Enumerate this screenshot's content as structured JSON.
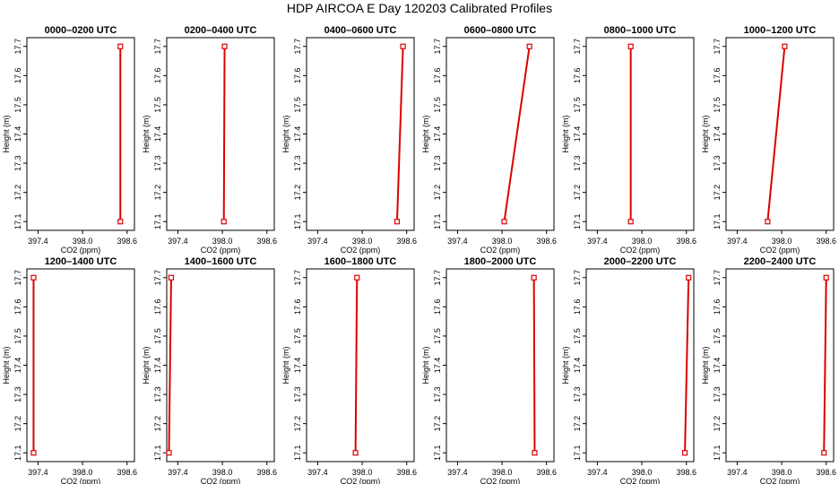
{
  "figure_title": "HDP AIRCOA E  Day 120203  Calibrated Profiles",
  "chart_data": [
    {
      "type": "line",
      "title": "0000–0200 UTC",
      "xlabel": "CO2 (ppm)",
      "ylabel": "Height (m)",
      "xlim": [
        397.25,
        398.7
      ],
      "ylim": [
        17.07,
        17.73
      ],
      "xticks": [
        "397.4",
        "398.0",
        "398.6"
      ],
      "yticks": [
        "17.1",
        "17.2",
        "17.3",
        "17.4",
        "17.5",
        "17.6",
        "17.7"
      ],
      "series": [
        {
          "x": [
            398.51,
            398.51
          ],
          "y": [
            17.1,
            17.7
          ]
        }
      ]
    },
    {
      "type": "line",
      "title": "0200–0400 UTC",
      "xlabel": "CO2 (ppm)",
      "ylabel": "Height (m)",
      "xlim": [
        397.25,
        398.7
      ],
      "ylim": [
        17.07,
        17.73
      ],
      "xticks": [
        "397.4",
        "398.0",
        "398.6"
      ],
      "yticks": [
        "17.1",
        "17.2",
        "17.3",
        "17.4",
        "17.5",
        "17.6",
        "17.7"
      ],
      "series": [
        {
          "x": [
            398.02,
            398.03
          ],
          "y": [
            17.1,
            17.7
          ]
        }
      ]
    },
    {
      "type": "line",
      "title": "0400–0600 UTC",
      "xlabel": "CO2 (ppm)",
      "ylabel": "Height (m)",
      "xlim": [
        397.25,
        398.7
      ],
      "ylim": [
        17.07,
        17.73
      ],
      "xticks": [
        "397.4",
        "398.0",
        "398.6"
      ],
      "yticks": [
        "17.1",
        "17.2",
        "17.3",
        "17.4",
        "17.5",
        "17.6",
        "17.7"
      ],
      "series": [
        {
          "x": [
            398.47,
            398.55
          ],
          "y": [
            17.1,
            17.7
          ]
        }
      ]
    },
    {
      "type": "line",
      "title": "0600–0800 UTC",
      "xlabel": "CO2 (ppm)",
      "ylabel": "Height (m)",
      "xlim": [
        397.25,
        398.7
      ],
      "ylim": [
        17.07,
        17.73
      ],
      "xticks": [
        "397.4",
        "398.0",
        "398.6"
      ],
      "yticks": [
        "17.1",
        "17.2",
        "17.3",
        "17.4",
        "17.5",
        "17.6",
        "17.7"
      ],
      "series": [
        {
          "x": [
            398.03,
            398.37
          ],
          "y": [
            17.1,
            17.7
          ]
        }
      ]
    },
    {
      "type": "line",
      "title": "0800–1000 UTC",
      "xlabel": "CO2 (ppm)",
      "ylabel": "Height (m)",
      "xlim": [
        397.25,
        398.7
      ],
      "ylim": [
        17.07,
        17.73
      ],
      "xticks": [
        "397.4",
        "398.0",
        "398.6"
      ],
      "yticks": [
        "17.1",
        "17.2",
        "17.3",
        "17.4",
        "17.5",
        "17.6",
        "17.7"
      ],
      "series": [
        {
          "x": [
            397.85,
            397.85
          ],
          "y": [
            17.1,
            17.7
          ]
        }
      ]
    },
    {
      "type": "line",
      "title": "1000–1200 UTC",
      "xlabel": "CO2 (ppm)",
      "ylabel": "Height (m)",
      "xlim": [
        397.25,
        398.7
      ],
      "ylim": [
        17.07,
        17.73
      ],
      "xticks": [
        "397.4",
        "398.0",
        "398.6"
      ],
      "yticks": [
        "17.1",
        "17.2",
        "17.3",
        "17.4",
        "17.5",
        "17.6",
        "17.7"
      ],
      "series": [
        {
          "x": [
            397.81,
            398.04
          ],
          "y": [
            17.1,
            17.7
          ]
        }
      ]
    },
    {
      "type": "line",
      "title": "1200–1400 UTC",
      "xlabel": "CO2 (ppm)",
      "ylabel": "Height (m)",
      "xlim": [
        397.25,
        398.7
      ],
      "ylim": [
        17.07,
        17.73
      ],
      "xticks": [
        "397.4",
        "398.0",
        "398.6"
      ],
      "yticks": [
        "17.1",
        "17.2",
        "17.3",
        "17.4",
        "17.5",
        "17.6",
        "17.7"
      ],
      "series": [
        {
          "x": [
            397.34,
            397.34
          ],
          "y": [
            17.1,
            17.7
          ]
        }
      ]
    },
    {
      "type": "line",
      "title": "1400–1600 UTC",
      "xlabel": "CO2 (ppm)",
      "ylabel": "Height (m)",
      "xlim": [
        397.25,
        398.7
      ],
      "ylim": [
        17.07,
        17.73
      ],
      "xticks": [
        "397.4",
        "398.0",
        "398.6"
      ],
      "yticks": [
        "17.1",
        "17.2",
        "17.3",
        "17.4",
        "17.5",
        "17.6",
        "17.7"
      ],
      "series": [
        {
          "x": [
            397.28,
            397.31
          ],
          "y": [
            17.1,
            17.7
          ]
        }
      ]
    },
    {
      "type": "line",
      "title": "1600–1800 UTC",
      "xlabel": "CO2 (ppm)",
      "ylabel": "Height (m)",
      "xlim": [
        397.25,
        398.7
      ],
      "ylim": [
        17.07,
        17.73
      ],
      "xticks": [
        "397.4",
        "398.0",
        "398.6"
      ],
      "yticks": [
        "17.1",
        "17.2",
        "17.3",
        "17.4",
        "17.5",
        "17.6",
        "17.7"
      ],
      "series": [
        {
          "x": [
            397.91,
            397.93
          ],
          "y": [
            17.1,
            17.7
          ]
        }
      ]
    },
    {
      "type": "line",
      "title": "1800–2000 UTC",
      "xlabel": "CO2 (ppm)",
      "ylabel": "Height (m)",
      "xlim": [
        397.25,
        398.7
      ],
      "ylim": [
        17.07,
        17.73
      ],
      "xticks": [
        "397.4",
        "398.0",
        "398.6"
      ],
      "yticks": [
        "17.1",
        "17.2",
        "17.3",
        "17.4",
        "17.5",
        "17.6",
        "17.7"
      ],
      "series": [
        {
          "x": [
            398.44,
            398.43
          ],
          "y": [
            17.1,
            17.7
          ]
        }
      ]
    },
    {
      "type": "line",
      "title": "2000–2200 UTC",
      "xlabel": "CO2 (ppm)",
      "ylabel": "Height (m)",
      "xlim": [
        397.25,
        398.7
      ],
      "ylim": [
        17.07,
        17.73
      ],
      "xticks": [
        "397.4",
        "398.0",
        "398.6"
      ],
      "yticks": [
        "17.1",
        "17.2",
        "17.3",
        "17.4",
        "17.5",
        "17.6",
        "17.7"
      ],
      "series": [
        {
          "x": [
            398.58,
            398.63
          ],
          "y": [
            17.1,
            17.7
          ]
        }
      ]
    },
    {
      "type": "line",
      "title": "2200–2400 UTC",
      "xlabel": "CO2 (ppm)",
      "ylabel": "Height (m)",
      "xlim": [
        397.25,
        398.7
      ],
      "ylim": [
        17.07,
        17.73
      ],
      "xticks": [
        "397.4",
        "398.0",
        "398.6"
      ],
      "yticks": [
        "17.1",
        "17.2",
        "17.3",
        "17.4",
        "17.5",
        "17.6",
        "17.7"
      ],
      "series": [
        {
          "x": [
            398.57,
            398.6
          ],
          "y": [
            17.1,
            17.7
          ]
        }
      ]
    }
  ]
}
